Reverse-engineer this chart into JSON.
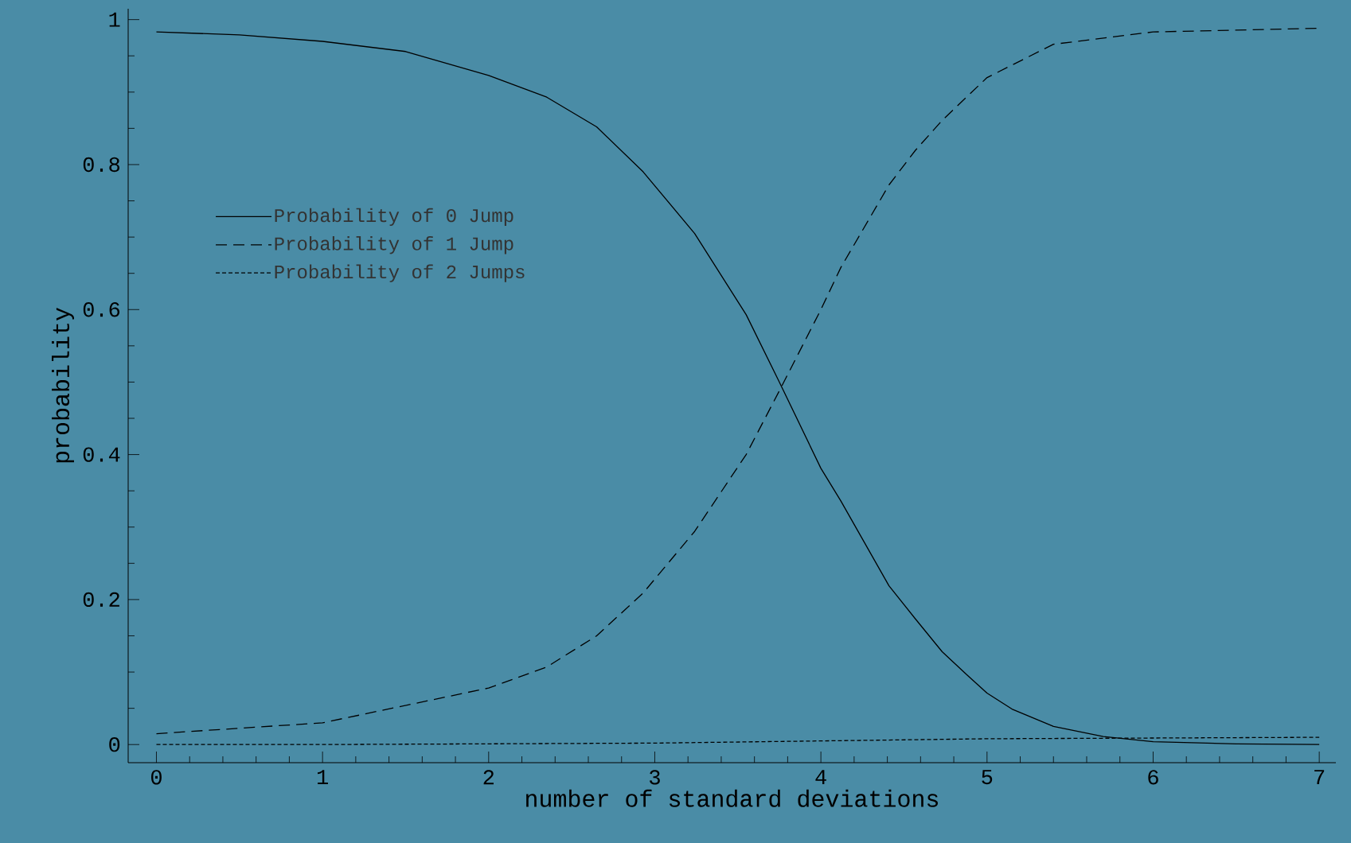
{
  "chart_data": {
    "type": "line",
    "xlabel": "number of standard deviations",
    "ylabel": "probability",
    "xlim": [
      -0.17,
      7.1
    ],
    "ylim": [
      -0.025,
      1.015
    ],
    "xticks": [
      0,
      1,
      2,
      3,
      4,
      5,
      6,
      7
    ],
    "yticks": [
      0,
      0.2,
      0.4,
      0.6,
      0.8,
      1
    ],
    "grid": false,
    "legend": "left",
    "marker": "none",
    "series": [
      {
        "name": "Probability of 0 Jump",
        "color": "#000000",
        "line_style": "solid",
        "x": [
          0,
          0.5,
          1,
          1.5,
          2,
          2.35,
          2.65,
          2.93,
          3.24,
          3.55,
          3.75,
          4,
          4.12,
          4.41,
          4.57,
          4.73,
          4.88,
          5,
          5.15,
          5.4,
          5.7,
          6,
          6.5,
          7
        ],
        "values": [
          0.983,
          0.979,
          0.97,
          0.956,
          0.923,
          0.893,
          0.852,
          0.79,
          0.705,
          0.593,
          0.5,
          0.381,
          0.336,
          0.219,
          0.173,
          0.128,
          0.096,
          0.071,
          0.049,
          0.025,
          0.011,
          0.004,
          0.001,
          0.0
        ]
      },
      {
        "name": "Probability of 1 Jump",
        "color": "#000000",
        "line_style": "dashed",
        "x": [
          0,
          1,
          2,
          2.35,
          2.65,
          2.93,
          3.24,
          3.55,
          3.75,
          4,
          4.12,
          4.41,
          4.57,
          4.73,
          5,
          5.4,
          6,
          7
        ],
        "values": [
          0.015,
          0.03,
          0.078,
          0.107,
          0.15,
          0.209,
          0.294,
          0.4,
          0.488,
          0.6,
          0.658,
          0.772,
          0.82,
          0.861,
          0.92,
          0.966,
          0.983,
          0.988
        ]
      },
      {
        "name": "Probability of 2 Jumps",
        "color": "#000000",
        "line_style": "dotted",
        "x": [
          0,
          1,
          2,
          3,
          4,
          5,
          6,
          7
        ],
        "values": [
          0.0,
          0.0,
          0.001,
          0.002,
          0.005,
          0.008,
          0.009,
          0.01
        ]
      }
    ]
  }
}
